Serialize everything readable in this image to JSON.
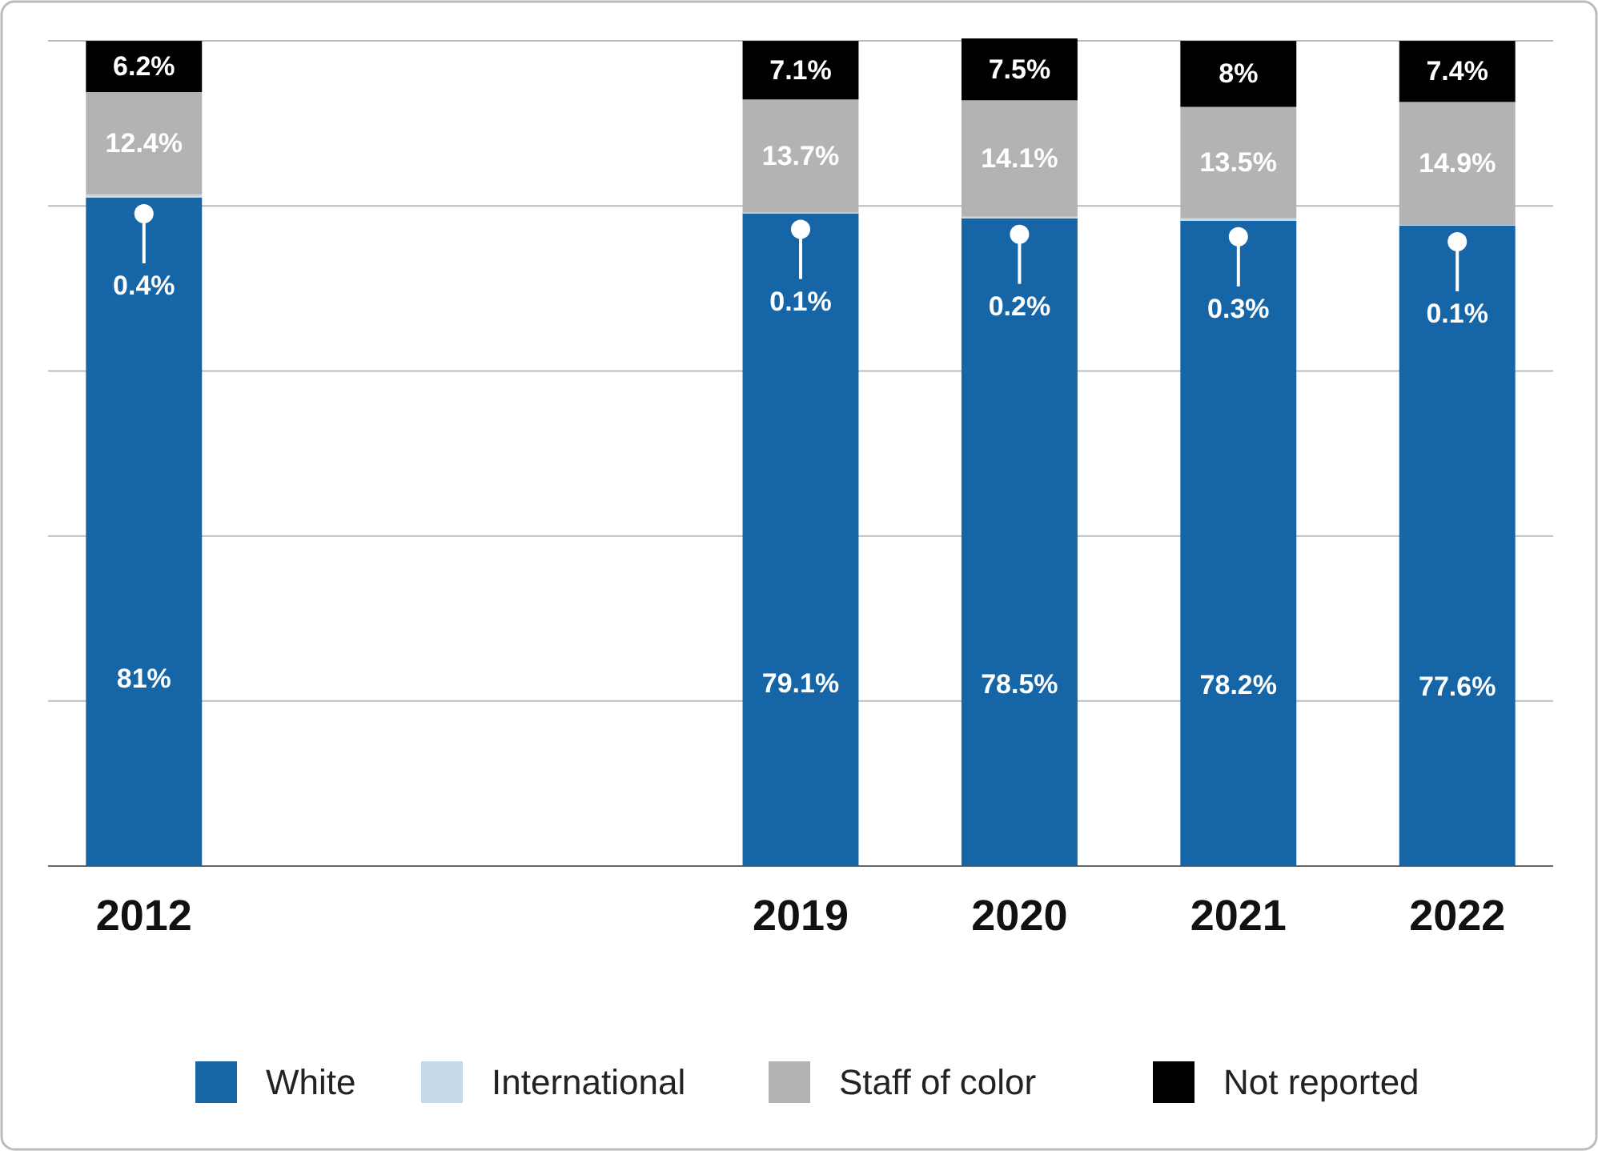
{
  "chart_data": {
    "type": "bar",
    "stacked": true,
    "categories": [
      "2012",
      null,
      null,
      "2019",
      "2020",
      "2021",
      "2022"
    ],
    "series": [
      {
        "name": "White",
        "color": "#1565a7",
        "values": [
          81,
          null,
          null,
          79.1,
          78.5,
          78.2,
          77.6
        ],
        "value_labels": [
          "81%",
          null,
          null,
          "79.1%",
          "78.5%",
          "78.2%",
          "77.6%"
        ]
      },
      {
        "name": "International",
        "color": "#c5d9e8",
        "values": [
          0.4,
          null,
          null,
          0.1,
          0.2,
          0.3,
          0.1
        ],
        "value_labels": [
          "0.4%",
          null,
          null,
          "0.1%",
          "0.2%",
          "0.3%",
          "0.1%"
        ]
      },
      {
        "name": "Staff of color",
        "color": "#b3b3b3",
        "values": [
          12.4,
          null,
          null,
          13.7,
          14.1,
          13.5,
          14.9
        ],
        "value_labels": [
          "12.4%",
          null,
          null,
          "13.7%",
          "14.1%",
          "13.5%",
          "14.9%"
        ]
      },
      {
        "name": "Not reported",
        "color": "#000000",
        "values": [
          6.2,
          null,
          null,
          7.1,
          7.5,
          8,
          7.4
        ],
        "value_labels": [
          "6.2%",
          null,
          null,
          "7.1%",
          "7.5%",
          "8%",
          "7.4%"
        ]
      }
    ],
    "tick_labels": "x",
    "grid": "y",
    "legend": "bottom"
  }
}
